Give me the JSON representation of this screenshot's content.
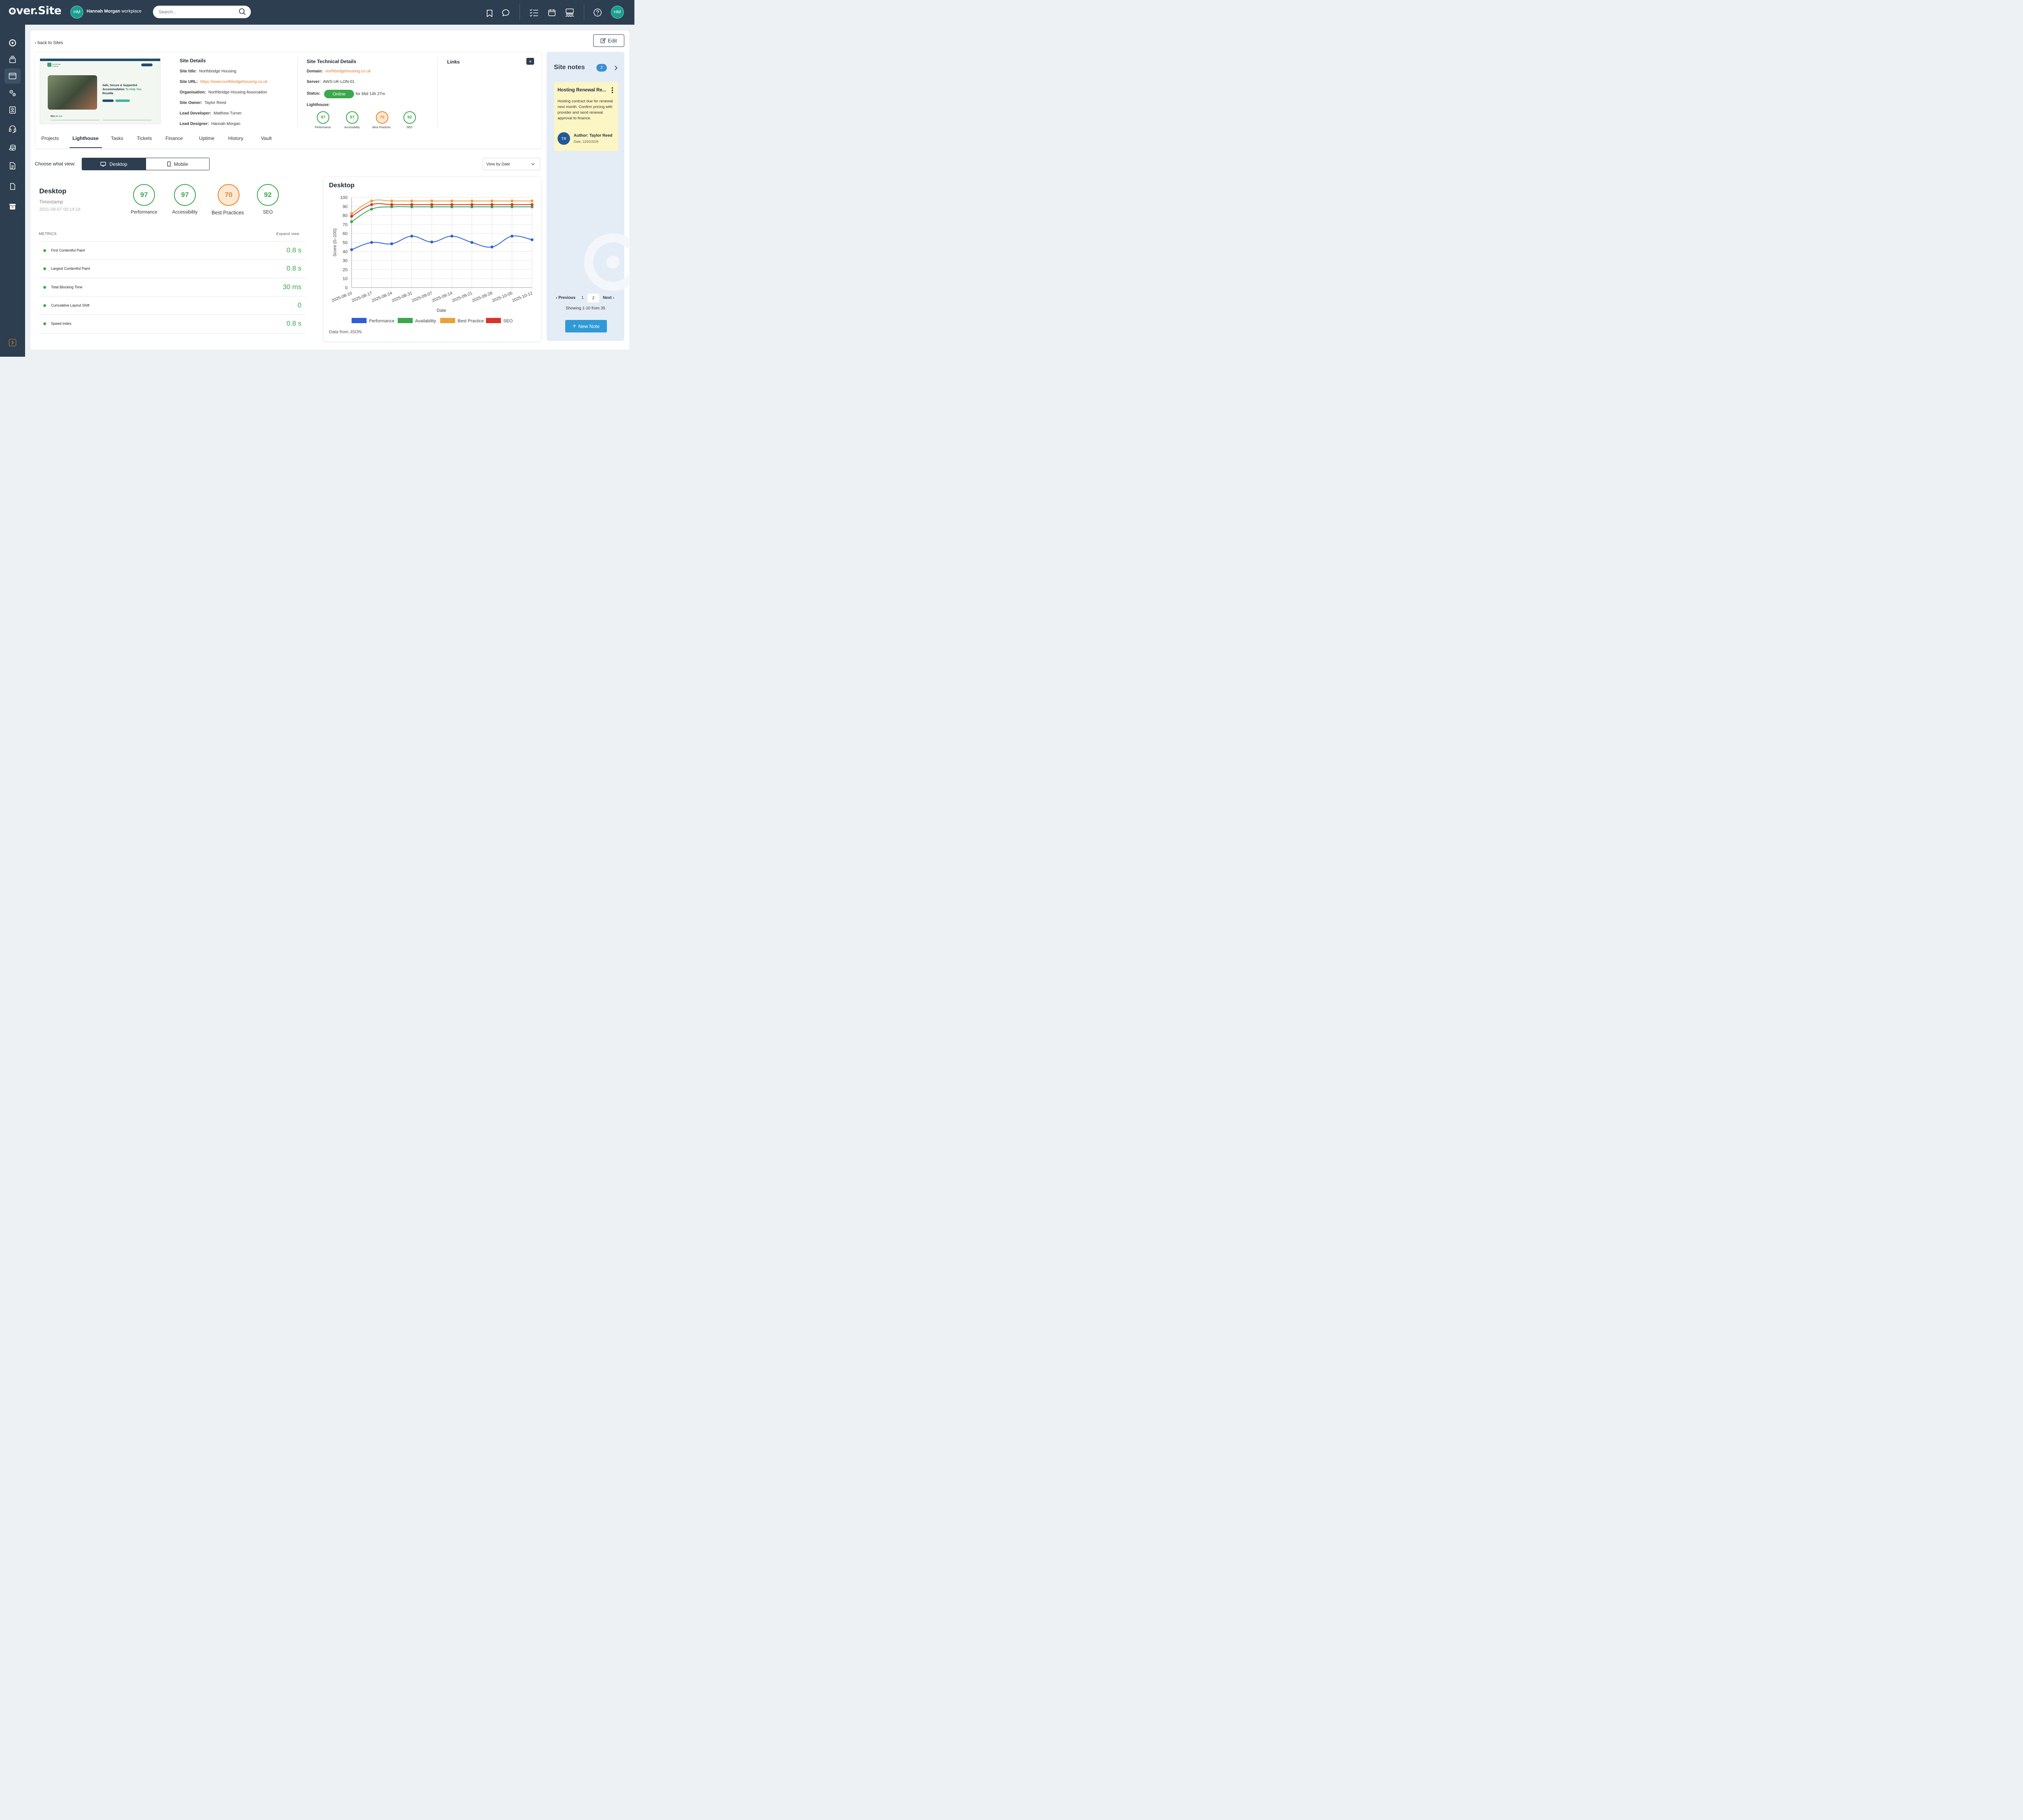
{
  "app": {
    "logo": "Over.Site",
    "user_initials": "HM",
    "workspace_name": "Hannah Morgan",
    "workspace_suffix": "workplace"
  },
  "search": {
    "placeholder": "Search..."
  },
  "nav": {
    "back": "back to Sites",
    "edit": "Edit"
  },
  "site_details": {
    "heading": "Site Details",
    "fields": [
      {
        "label": "Site title:",
        "value": "Northbridge Housing"
      },
      {
        "label": "Site URL:",
        "value": "https://www.northbridgehousing.co.uk"
      },
      {
        "label": "Organisation:",
        "value": "Northbridge Housing Association"
      },
      {
        "label": "Site Owner:",
        "value": "Taylor Reed"
      },
      {
        "label": "Lead Developer:",
        "value": "Matthew Turner"
      },
      {
        "label": "Lead Designer:",
        "value": "Hannah Morgan"
      }
    ]
  },
  "thumbnail": {
    "brand": "Northbridge Housing",
    "headline_1": "Safe, Secure & Supported",
    "headline_2": "Accommodation",
    "headline_accent": "To Help You",
    "headline_3": "Resettle",
    "who": "Who",
    "who_accent": "We Are"
  },
  "technical": {
    "heading": "Site Technical Details",
    "domain_label": "Domain:",
    "domain": "northbridgehousing.co.uk",
    "server_label": "Server:",
    "server": "AWS-UK-LON-01",
    "status_label": "Status:",
    "status": "Online",
    "uptime": "for 66d 14h 27m",
    "lighthouse_label": "Lighthouse:",
    "scores": [
      {
        "label": "Performance",
        "value": "97"
      },
      {
        "label": "Accessibility",
        "value": "97"
      },
      {
        "label": "Best Practices",
        "value": "70"
      },
      {
        "label": "SEO",
        "value": "92"
      }
    ]
  },
  "links": {
    "heading": "Links",
    "add": "+"
  },
  "tabs": [
    "Projects",
    "Lighthouse",
    "Tasks",
    "Tickets",
    "Finance",
    "Uptime",
    "History",
    "Vault"
  ],
  "view": {
    "label": "Choose what view:",
    "desktop": "Desktop",
    "mobile": "Mobile",
    "sort": "View by Date"
  },
  "desktop": {
    "title": "Desktop",
    "timestamp_label": "Timestamp",
    "timestamp": "2021-09-07 00:14:16",
    "scores": [
      {
        "label": "Performance",
        "value": "97"
      },
      {
        "label": "Accessibility",
        "value": "97"
      },
      {
        "label": "Best Practices",
        "value": "70"
      },
      {
        "label": "SEO",
        "value": "92"
      }
    ]
  },
  "metrics": {
    "heading": "METRICS",
    "expand": "Expand view",
    "rows": [
      {
        "name": "First Contentful Paint",
        "value": "0.8 s"
      },
      {
        "name": "Largest Contentful Paint",
        "value": "0.8 s"
      },
      {
        "name": "Total Blocking Time",
        "value": "30 ms"
      },
      {
        "name": "Cumulative Layout Shift",
        "value": "0"
      },
      {
        "name": "Speed Index",
        "value": "0.8 s"
      }
    ]
  },
  "chart_card": {
    "title": "Desktop",
    "footer": "Data from JSON"
  },
  "chart_data": {
    "type": "line",
    "title": "",
    "xlabel": "Date",
    "ylabel": "Score (0–100)",
    "ylim": [
      0,
      100
    ],
    "yticks": [
      0,
      10,
      20,
      30,
      40,
      50,
      60,
      70,
      80,
      90,
      100
    ],
    "grid": true,
    "legend": "bottom",
    "x": [
      "2025-08-10",
      "2025-08-17",
      "2025-08-24",
      "2025-08-31",
      "2025-09-07",
      "2025-09-14",
      "2025-09-21",
      "2025-09-28",
      "2025-10-05",
      "2025-10-12"
    ],
    "series": [
      {
        "name": "Performance",
        "color": "#2f5fd6",
        "values": [
          42,
          50,
          48.5,
          57,
          50.5,
          57,
          50,
          45,
          57,
          53
        ]
      },
      {
        "name": "Availability",
        "color": "#3aa84b",
        "values": [
          73,
          87,
          89.5,
          89.5,
          89.5,
          89.5,
          89.5,
          89.5,
          89.5,
          89.5
        ]
      },
      {
        "name": "Best Practice",
        "color": "#e9a23b",
        "values": [
          82,
          96,
          96,
          96,
          96,
          96,
          96,
          96,
          96,
          96
        ]
      },
      {
        "name": "SEO",
        "color": "#d8342c",
        "values": [
          79,
          92,
          92,
          92,
          92,
          92,
          92,
          92,
          92,
          92
        ]
      }
    ]
  },
  "notes": {
    "heading": "Site notes",
    "count": "2",
    "note": {
      "title": "Hosting Renewal Re...",
      "body": "Hosting contract due for renewal next month. Confirm pricing with provider and send renewal approval to finance.",
      "author": "Author: Taylor Reed",
      "date": "Date: 12/02/2026",
      "initials": "TR"
    },
    "prev": "Previous",
    "page1": "1",
    "page2": "2",
    "next": "Next",
    "showing": "Showing 1-10 from 35",
    "new_note": "New Note"
  },
  "colors": {
    "brand_dark": "#2c3e50",
    "accent_blue": "#2f9ad6",
    "good": "#3aa84b",
    "warn": "#e8862a",
    "note_bg": "#fcf5c4"
  }
}
